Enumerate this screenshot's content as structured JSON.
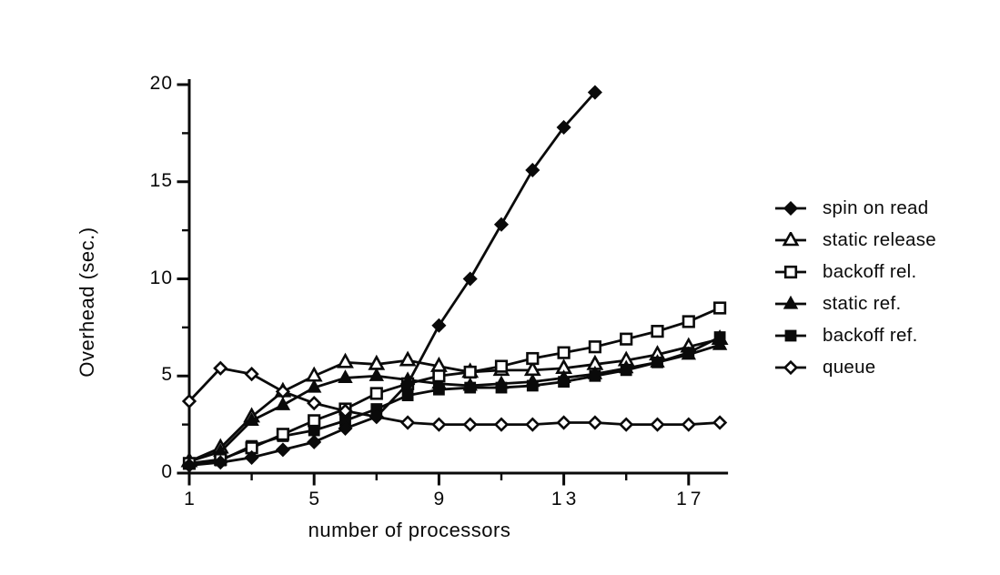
{
  "chart_data": {
    "type": "line",
    "title": "",
    "xlabel": "number of processors",
    "ylabel": "Overhead (sec.)",
    "xlim": [
      1,
      18
    ],
    "ylim": [
      0,
      20
    ],
    "x_major_ticks": [
      1,
      5,
      9,
      13,
      17
    ],
    "x_minor_ticks": [
      3,
      7,
      11,
      15
    ],
    "y_major_ticks": [
      0,
      5,
      10,
      15,
      20
    ],
    "y_minor_ticks": [
      2.5,
      7.5,
      12.5,
      17.5
    ],
    "grid": false,
    "legend_position": "right",
    "line_color": "#0a0a0a",
    "background_color": "#ffffff",
    "series": [
      {
        "name": "spin on read",
        "marker": "diamond-filled",
        "x": [
          1,
          2,
          3,
          4,
          5,
          6,
          7,
          8,
          9,
          10,
          11,
          12,
          13,
          14
        ],
        "y": [
          0.4,
          0.55,
          0.8,
          1.2,
          1.6,
          2.3,
          2.9,
          4.6,
          7.6,
          10.0,
          12.8,
          15.6,
          17.8,
          19.6
        ]
      },
      {
        "name": "static release",
        "marker": "triangle-open",
        "x": [
          1,
          2,
          3,
          4,
          5,
          6,
          7,
          8,
          9,
          10,
          11,
          12,
          13,
          14,
          15,
          16,
          17,
          18
        ],
        "y": [
          0.6,
          1.3,
          2.9,
          4.2,
          5.0,
          5.7,
          5.6,
          5.8,
          5.5,
          5.2,
          5.3,
          5.3,
          5.4,
          5.6,
          5.8,
          6.1,
          6.5,
          6.9
        ]
      },
      {
        "name": "backoff rel.",
        "marker": "square-open",
        "x": [
          1,
          2,
          3,
          4,
          5,
          6,
          7,
          8,
          9,
          10,
          11,
          12,
          13,
          14,
          15,
          16,
          17,
          18
        ],
        "y": [
          0.5,
          0.7,
          1.3,
          2.0,
          2.7,
          3.3,
          4.1,
          4.6,
          5.0,
          5.2,
          5.5,
          5.9,
          6.2,
          6.5,
          6.9,
          7.3,
          7.8,
          8.5
        ]
      },
      {
        "name": "static ref.",
        "marker": "triangle-filled",
        "x": [
          1,
          2,
          3,
          4,
          5,
          6,
          7,
          8,
          9,
          10,
          11,
          12,
          13,
          14,
          15,
          16,
          17,
          18
        ],
        "y": [
          0.6,
          1.1,
          2.7,
          3.5,
          4.4,
          4.9,
          5.0,
          4.8,
          4.6,
          4.5,
          4.6,
          4.7,
          4.9,
          5.1,
          5.4,
          5.7,
          6.1,
          6.6
        ]
      },
      {
        "name": "backoff ref.",
        "marker": "square-filled",
        "x": [
          1,
          2,
          3,
          4,
          5,
          6,
          7,
          8,
          9,
          10,
          11,
          12,
          13,
          14,
          15,
          16,
          17,
          18
        ],
        "y": [
          0.5,
          0.65,
          1.4,
          1.9,
          2.2,
          2.7,
          3.3,
          4.0,
          4.3,
          4.4,
          4.4,
          4.5,
          4.7,
          5.0,
          5.3,
          5.7,
          6.2,
          7.0
        ]
      },
      {
        "name": "queue",
        "marker": "diamond-open",
        "x": [
          1,
          2,
          3,
          4,
          5,
          6,
          7,
          8,
          9,
          10,
          11,
          12,
          13,
          14,
          15,
          16,
          17,
          18
        ],
        "y": [
          3.7,
          5.4,
          5.1,
          4.2,
          3.6,
          3.2,
          2.9,
          2.6,
          2.5,
          2.5,
          2.5,
          2.5,
          2.6,
          2.6,
          2.5,
          2.5,
          2.5,
          2.6
        ]
      }
    ]
  }
}
